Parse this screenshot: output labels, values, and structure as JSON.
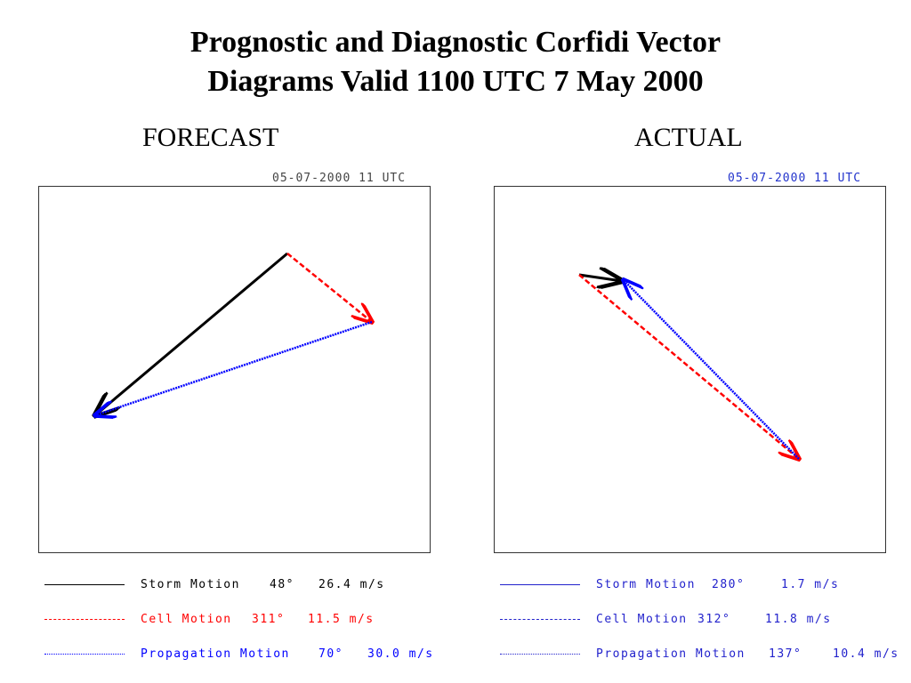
{
  "title": "Prognostic and Diagnostic Corfidi Vector",
  "title2": "Diagrams Valid 1100 UTC 7 May 2000",
  "forecast": {
    "label": "FORECAST",
    "stamp": "05-07-2000   11 UTC",
    "legend": [
      {
        "name": "Storm Motion",
        "dir": "48°",
        "speed": "26.4 m/s",
        "color": "#000000"
      },
      {
        "name": "Cell Motion",
        "dir": "311°",
        "speed": "11.5 m/s",
        "color": "#ff0000"
      },
      {
        "name": "Propagation Motion",
        "dir": "70°",
        "speed": "30.0 m/s",
        "color": "#0000ff"
      }
    ]
  },
  "actual": {
    "label": "ACTUAL",
    "stamp": "05-07-2000   11 UTC",
    "legend": [
      {
        "name": "Storm Motion",
        "dir": "280°",
        "speed": "1.7 m/s",
        "color": "#0000ff"
      },
      {
        "name": "Cell Motion",
        "dir": "312°",
        "speed": "11.8 m/s",
        "color": "#0000ff"
      },
      {
        "name": "Propagation Motion",
        "dir": "137°",
        "speed": "10.4 m/s",
        "color": "#0000ff"
      }
    ]
  }
}
